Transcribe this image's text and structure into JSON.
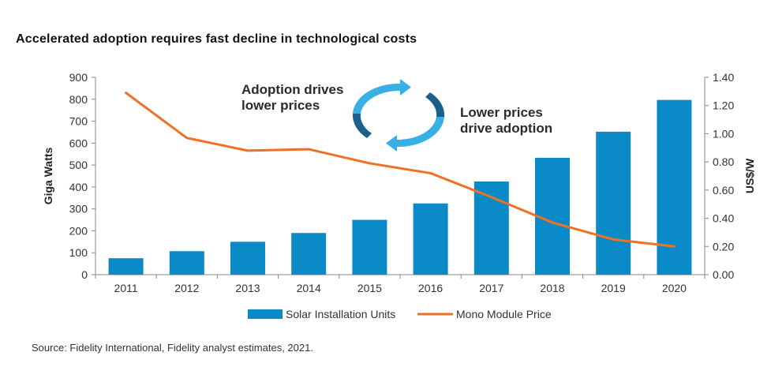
{
  "title": "Accelerated adoption requires fast decline in technological costs",
  "source": "Source: Fidelity International, Fidelity analyst estimates, 2021.",
  "annotations": {
    "left_line1": "Adoption drives",
    "left_line2": "lower prices",
    "right_line1": "Lower prices",
    "right_line2": "drive adoption",
    "cycle_icon": "circular-arrows-icon"
  },
  "colors": {
    "bar": "#0a8ac6",
    "line": "#ee7125",
    "cycle_light": "#39b0e4",
    "cycle_dark": "#1c5f8d"
  },
  "chart_data": {
    "type": "bar+line",
    "categories": [
      "2011",
      "2012",
      "2013",
      "2014",
      "2015",
      "2016",
      "2017",
      "2018",
      "2019",
      "2020"
    ],
    "series": [
      {
        "name": "Solar Installation Units",
        "type": "bar",
        "axis": "left",
        "values": [
          75,
          107,
          150,
          190,
          250,
          325,
          425,
          533,
          652,
          797
        ]
      },
      {
        "name": "Mono Module Price",
        "type": "line",
        "axis": "right",
        "values": [
          1.29,
          0.97,
          0.88,
          0.89,
          0.79,
          0.72,
          0.55,
          0.37,
          0.25,
          0.2
        ]
      }
    ],
    "ylabel": "Giga Watts",
    "y2label": "US$/W",
    "ylim": [
      0,
      900
    ],
    "y2lim": [
      0,
      1.4
    ],
    "yticks": [
      "0",
      "100",
      "200",
      "300",
      "400",
      "500",
      "600",
      "700",
      "800",
      "900"
    ],
    "y2ticks": [
      "0.00",
      "0.20",
      "0.40",
      "0.60",
      "0.80",
      "1.00",
      "1.20",
      "1.40"
    ],
    "grid": false,
    "legend": "bottom"
  }
}
